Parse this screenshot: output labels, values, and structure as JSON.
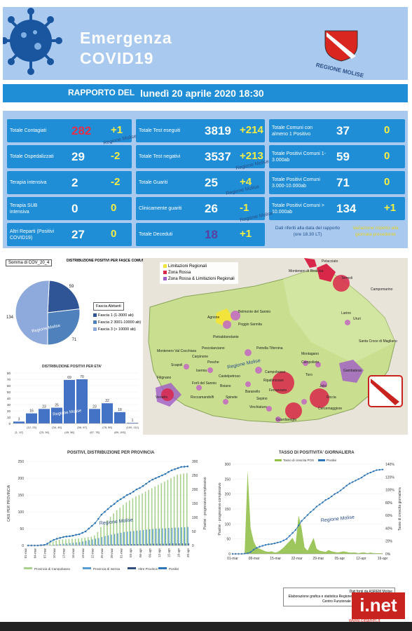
{
  "header": {
    "title_line1": "Emergenza",
    "title_line2": "COVID19",
    "region_logo_text": "REGIONE MOLISE"
  },
  "report": {
    "label": "RAPPORTO DEL",
    "date": "lunedì 20 aprile 2020 18:30"
  },
  "stats": [
    {
      "label": "Totale Contagiati",
      "value": "282",
      "delta": "+1",
      "value_color": "#e0304a"
    },
    {
      "label": "Totale Ospedalizzati",
      "value": "29",
      "delta": "-2"
    },
    {
      "label": "Terapia intensiva",
      "value": "2",
      "delta": "-2"
    },
    {
      "label": "Terapia SUB intensiva",
      "value": "0",
      "delta": "0"
    },
    {
      "label": "Altri Reparti (Positivi COVID19)",
      "value": "27",
      "delta": "0"
    },
    {
      "label": "Totale Test eseguiti",
      "value": "3819",
      "delta": "+214"
    },
    {
      "label": "Totale Test negativi",
      "value": "3537",
      "delta": "+213"
    },
    {
      "label": "Totale Guariti",
      "value": "25",
      "delta": "+4"
    },
    {
      "label": "Clinicamente guariti",
      "value": "26",
      "delta": "-1"
    },
    {
      "label": "Totale Deceduti",
      "value": "18",
      "delta": "+1",
      "value_color": "#5b3fa0"
    },
    {
      "label": "Totale Comuni con almeno 1 Positivo",
      "value": "37",
      "delta": "0"
    },
    {
      "label": "Totale Positivi Comuni 1-3.000ab",
      "value": "59",
      "delta": "0"
    },
    {
      "label": "Totale Positivi Comuni 3.000-10.000ab",
      "value": "71",
      "delta": "0"
    },
    {
      "label": "Totale Positivi Comuni > 10.000ab",
      "value": "134",
      "delta": "+1"
    }
  ],
  "notes": {
    "left": "Dati riferiti alla data del rapporto (ore 18.30 LT)",
    "right": "Variazione rispetto alla giornata precedente"
  },
  "watermark": "Regione Molise",
  "map": {
    "legend": [
      "Limitazioni Regionali",
      "Zona Rossa",
      "Zona Rossa & Limitazioni Regionali"
    ],
    "legend_colors": [
      "#f2e43a",
      "#d9274a",
      "#a05bc4"
    ],
    "towns": [
      "Petacciato",
      "Montenero di Bisaccia",
      "Termoli",
      "Campomarino",
      "Larino",
      "Ururi",
      "Agnone",
      "Belmonte del Sannio",
      "Poggio Sannita",
      "Santa Croce di Magliano",
      "Pietrabbondante",
      "Pescolanciano",
      "Petrella Tifernina",
      "Montagano",
      "Campolieto",
      "Campobasso",
      "Ripalimosani",
      "Ferrazzano",
      "Toro",
      "Jelsi",
      "Scapoli",
      "Isernia",
      "Castelpetroso",
      "Filignano",
      "Venafro",
      "Roccamandolfi",
      "Boiano",
      "Cercemaggiore",
      "Sepino",
      "Guardiaregia",
      "Vinchiaturo",
      "Riccia",
      "Gambatesa",
      "Carpinone",
      "Montenero Val Cocchiara",
      "Pesche",
      "Forlì del Sannio",
      "Baranello",
      "Spinete"
    ]
  },
  "chart_data": [
    {
      "type": "pie",
      "title": "Somma di COV_20_4",
      "subtitle": "DISTRIBUZIONE POSITIVI PER FASCE COMUNI",
      "legend_title": "Fascia Abitanti",
      "labels": [
        "Fascia 1 (1-3000 ab)",
        "Fascia 2 3001-10000 ab)",
        "Fascia 3 (> 10000 ab)"
      ],
      "values": [
        59,
        71,
        134
      ],
      "colors": [
        "#2f5597",
        "#4f81bd",
        "#8ea9db"
      ]
    },
    {
      "type": "bar",
      "title": "DISTRIBUZIONE POSITIVI PER ETA'",
      "categories": [
        "[1, 12]",
        "(12, 23]",
        "(23, 34]",
        "(34, 45]",
        "(45, 56]",
        "(56, 67]",
        "(67, 78]",
        "(78, 89]",
        "(89, 100]",
        "(100, 111]"
      ],
      "values": [
        3,
        16,
        23,
        25,
        69,
        70,
        23,
        32,
        18,
        1
      ],
      "ylim": [
        0,
        80
      ],
      "yticks": [
        0,
        10,
        20,
        30,
        40,
        50,
        60,
        70,
        80
      ],
      "color": "#4472c4"
    },
    {
      "type": "bar",
      "title": "POSITIVI, DISTRIBUZIONE PER PROVINCIA",
      "ylabel": "CASI PER PROVINCIA",
      "y2label": "Positivi - progressivo complessivo",
      "x_ticks": [
        "01-mar",
        "04-mar",
        "07-mar",
        "10-mar",
        "13-mar",
        "16-mar",
        "19-mar",
        "22-mar",
        "25-mar",
        "28-mar",
        "31-mar",
        "03-apr",
        "06-apr",
        "09-apr",
        "12-apr",
        "15-apr",
        "18-apr",
        "20-apr"
      ],
      "ylim": [
        0,
        250
      ],
      "yticks": [
        0,
        50,
        100,
        150,
        200,
        250
      ],
      "y2lim": [
        0,
        300
      ],
      "y2ticks": [
        0,
        50,
        100,
        150,
        200,
        250,
        300
      ],
      "legend": [
        "Provincia di Campobasso",
        "Provincia di Isernia",
        "Altre Province",
        "Positivi"
      ],
      "colors": [
        "#a9d18e",
        "#5b9bd5",
        "#2f4e7a",
        "#2e75b6"
      ],
      "campobasso": [
        0,
        0,
        0,
        0,
        0,
        0,
        2,
        8,
        12,
        15,
        17,
        18,
        18,
        19,
        20,
        20,
        21,
        22,
        23,
        25,
        26,
        30,
        40,
        55,
        65,
        75,
        85,
        95,
        105,
        112,
        120,
        128,
        134,
        140,
        146,
        150,
        155,
        160,
        165,
        170,
        175,
        180,
        185,
        190,
        195,
        200,
        205,
        210,
        212,
        214,
        215
      ],
      "isernia": [
        0,
        0,
        0,
        0,
        0,
        0,
        0,
        1,
        2,
        3,
        4,
        5,
        6,
        7,
        8,
        9,
        10,
        12,
        14,
        16,
        18,
        20,
        22,
        25,
        28,
        30,
        32,
        34,
        36,
        38,
        40,
        41,
        42,
        43,
        44,
        45,
        46,
        47,
        48,
        49,
        50,
        50,
        51,
        51,
        52,
        52,
        53,
        53,
        54,
        54,
        55
      ],
      "altre": [
        0,
        0,
        0,
        0,
        0,
        0,
        0,
        0,
        0,
        0,
        0,
        1,
        1,
        1,
        1,
        1,
        1,
        1,
        1,
        2,
        2,
        2,
        2,
        2,
        2,
        3,
        3,
        3,
        3,
        3,
        3,
        4,
        4,
        4,
        4,
        4,
        4,
        5,
        5,
        5,
        5,
        5,
        5,
        5,
        6,
        6,
        6,
        6,
        6,
        6,
        6
      ],
      "positivi": [
        0,
        0,
        0,
        0,
        1,
        2,
        6,
        14,
        20,
        24,
        27,
        30,
        32,
        33,
        35,
        38,
        40,
        45,
        50,
        60,
        70,
        80,
        95,
        110,
        120,
        130,
        140,
        148,
        158,
        165,
        172,
        180,
        185,
        192,
        200,
        205,
        212,
        220,
        228,
        235,
        240,
        245,
        250,
        255,
        262,
        268,
        272,
        276,
        280,
        281,
        282
      ]
    },
    {
      "type": "line",
      "title": "TASSO DI POSITIVITA' GIORNALIERA",
      "ylabel": "Positivi - progressivo complessivo",
      "y2label": "Tasso di crescita giornaliera",
      "x_ticks": [
        "01-mar",
        "08-mar",
        "15-mar",
        "22-mar",
        "29-mar",
        "05-apr",
        "12-apr",
        "19-apr"
      ],
      "ylim": [
        0,
        300
      ],
      "yticks": [
        0,
        50,
        100,
        150,
        200,
        250,
        300
      ],
      "y2ticks": [
        "0%",
        "20%",
        "40%",
        "60%",
        "80%",
        "100%",
        "120%",
        "140%"
      ],
      "legend": [
        "Tasso di crescita POS",
        "Positivi"
      ],
      "colors": [
        "#92c04a",
        "#2e75b6"
      ],
      "growth_pct": [
        0,
        0,
        0,
        0,
        0,
        130,
        40,
        20,
        10,
        8,
        6,
        4,
        3,
        4,
        2,
        3,
        6,
        10,
        15,
        20,
        25,
        15,
        60,
        40,
        10,
        5,
        15,
        25,
        8,
        5,
        4,
        3,
        6,
        4,
        3,
        2,
        3,
        4,
        3,
        2,
        2,
        2,
        1,
        2,
        2,
        1,
        2,
        1,
        1,
        1,
        1
      ],
      "positivi": [
        0,
        0,
        0,
        0,
        1,
        2,
        6,
        14,
        20,
        24,
        27,
        30,
        32,
        33,
        35,
        38,
        40,
        45,
        50,
        60,
        70,
        80,
        95,
        110,
        120,
        130,
        140,
        148,
        158,
        165,
        172,
        180,
        185,
        192,
        200,
        205,
        212,
        220,
        228,
        235,
        240,
        245,
        250,
        255,
        262,
        268,
        272,
        276,
        280,
        281,
        282
      ]
    }
  ],
  "footer": {
    "credit_lines": [
      "Dati fonti da ASREM Molise",
      "Elaborazione grafica e statistica Regione Molise - Protezione Civile",
      "Centro Funzionale Previsione e Monitoraggio"
    ],
    "brand": "i.net",
    "url": "www.cittanet.it"
  }
}
